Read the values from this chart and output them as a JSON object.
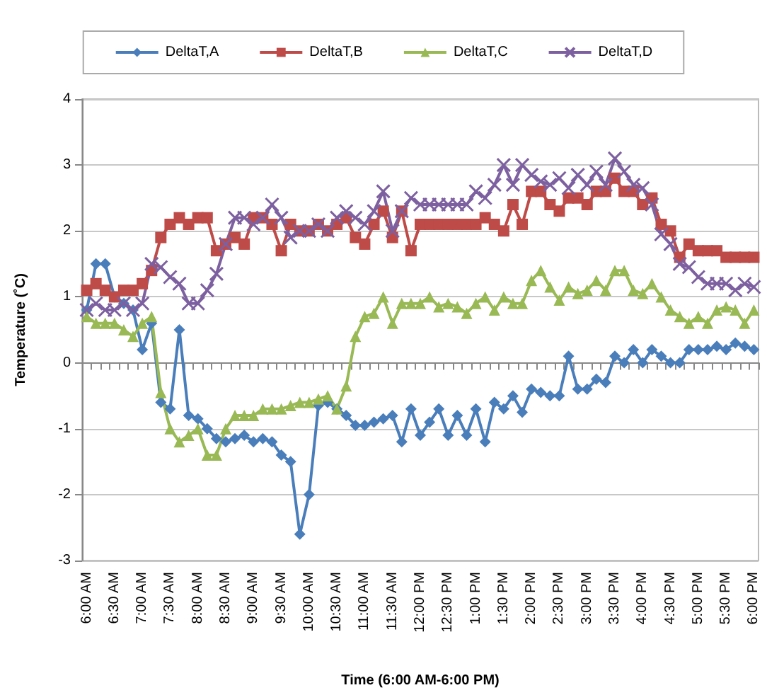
{
  "chart_data": {
    "type": "line",
    "xlabel": "Time (6:00 AM-6:00 PM)",
    "ylabel": "Temperature (˚C)",
    "categories": [
      "6:00 AM",
      null,
      null,
      "6:30 AM",
      null,
      null,
      "7:00 AM",
      null,
      null,
      "7:30 AM",
      null,
      null,
      "8:00 AM",
      null,
      null,
      "8:30 AM",
      null,
      null,
      "9:00 AM",
      null,
      null,
      "9:30 AM",
      null,
      null,
      "10:00 AM",
      null,
      null,
      "10:30 AM",
      null,
      null,
      "11:00 AM",
      null,
      null,
      "11:30 AM",
      null,
      null,
      "12:00 PM",
      null,
      null,
      "12:30 PM",
      null,
      null,
      "1:00 PM",
      null,
      null,
      "1:30 PM",
      null,
      null,
      "2:00 PM",
      null,
      null,
      "2:30 PM",
      null,
      null,
      "3:00 PM",
      null,
      null,
      "3:30 PM",
      null,
      null,
      "4:00 PM",
      null,
      null,
      "4:30 PM",
      null,
      null,
      "5:00 PM",
      null,
      null,
      "5:30 PM",
      null,
      null,
      "6:00 PM"
    ],
    "series": [
      {
        "name": "DeltaT,A",
        "color": "#4a7ebb",
        "marker": "diamond",
        "values": [
          0.8,
          1.5,
          1.5,
          1.0,
          0.9,
          0.8,
          0.2,
          0.6,
          -0.6,
          -0.7,
          0.5,
          -0.8,
          -0.85,
          -1.0,
          -1.15,
          -1.2,
          -1.15,
          -1.1,
          -1.2,
          -1.15,
          -1.2,
          -1.4,
          -1.5,
          -2.6,
          -2.0,
          -0.65,
          -0.6,
          -0.7,
          -0.8,
          -0.95,
          -0.95,
          -0.9,
          -0.85,
          -0.8,
          -1.2,
          -0.7,
          -1.1,
          -0.9,
          -0.7,
          -1.1,
          -0.8,
          -1.1,
          -0.7,
          -1.2,
          -0.6,
          -0.7,
          -0.5,
          -0.75,
          -0.4,
          -0.45,
          -0.5,
          -0.5,
          0.1,
          -0.4,
          -0.4,
          -0.25,
          -0.3,
          0.1,
          0.0,
          0.2,
          0.0,
          0.2,
          0.1,
          0.0,
          0.0,
          0.2,
          0.2,
          0.2,
          0.25,
          0.2,
          0.3,
          0.25,
          0.2
        ]
      },
      {
        "name": "DeltaT,B",
        "color": "#be4b48",
        "marker": "square",
        "values": [
          1.1,
          1.2,
          1.1,
          1.0,
          1.1,
          1.1,
          1.2,
          1.4,
          1.9,
          2.1,
          2.2,
          2.1,
          2.2,
          2.2,
          1.7,
          1.8,
          1.9,
          1.8,
          2.2,
          2.2,
          2.1,
          1.7,
          2.1,
          2.0,
          2.0,
          2.1,
          2.0,
          2.1,
          2.2,
          1.9,
          1.8,
          2.1,
          2.3,
          1.9,
          2.3,
          1.7,
          2.1,
          2.1,
          2.1,
          2.1,
          2.1,
          2.1,
          2.1,
          2.2,
          2.1,
          2.0,
          2.4,
          2.1,
          2.6,
          2.6,
          2.4,
          2.3,
          2.5,
          2.5,
          2.4,
          2.6,
          2.6,
          2.8,
          2.6,
          2.6,
          2.4,
          2.5,
          2.1,
          2.0,
          1.6,
          1.8,
          1.7,
          1.7,
          1.7,
          1.6,
          1.6,
          1.6,
          1.6
        ]
      },
      {
        "name": "DeltaT,C",
        "color": "#98b954",
        "marker": "triangle",
        "values": [
          0.7,
          0.6,
          0.6,
          0.6,
          0.5,
          0.4,
          0.6,
          0.7,
          -0.45,
          -1.0,
          -1.2,
          -1.1,
          -1.0,
          -1.4,
          -1.4,
          -1.0,
          -0.8,
          -0.8,
          -0.8,
          -0.7,
          -0.7,
          -0.7,
          -0.65,
          -0.6,
          -0.6,
          -0.55,
          -0.5,
          -0.7,
          -0.35,
          0.4,
          0.7,
          0.75,
          1.0,
          0.6,
          0.9,
          0.9,
          0.9,
          1.0,
          0.85,
          0.9,
          0.85,
          0.75,
          0.9,
          1.0,
          0.8,
          1.0,
          0.9,
          0.9,
          1.25,
          1.4,
          1.15,
          0.95,
          1.15,
          1.05,
          1.1,
          1.25,
          1.1,
          1.4,
          1.4,
          1.1,
          1.05,
          1.2,
          1.0,
          0.8,
          0.7,
          0.6,
          0.7,
          0.6,
          0.8,
          0.85,
          0.8,
          0.6,
          0.8
        ]
      },
      {
        "name": "DeltaT,D",
        "color": "#7d60a0",
        "marker": "cross",
        "values": [
          0.8,
          0.9,
          0.8,
          0.8,
          0.9,
          0.8,
          0.9,
          1.5,
          1.45,
          1.3,
          1.2,
          0.9,
          0.9,
          1.1,
          1.35,
          1.8,
          2.2,
          2.2,
          2.1,
          2.2,
          2.4,
          2.2,
          1.9,
          2.0,
          2.0,
          2.1,
          2.0,
          2.2,
          2.3,
          2.2,
          2.1,
          2.3,
          2.6,
          2.0,
          2.3,
          2.5,
          2.4,
          2.4,
          2.4,
          2.4,
          2.4,
          2.4,
          2.6,
          2.5,
          2.7,
          3.0,
          2.7,
          3.0,
          2.85,
          2.75,
          2.7,
          2.8,
          2.65,
          2.85,
          2.7,
          2.9,
          2.7,
          3.1,
          2.9,
          2.7,
          2.65,
          2.4,
          1.95,
          1.8,
          1.5,
          1.45,
          1.3,
          1.2,
          1.2,
          1.2,
          1.1,
          1.2,
          1.15
        ]
      }
    ],
    "ylim": [
      -3,
      4
    ],
    "yticks": [
      -3,
      -2,
      -1,
      0,
      1,
      2,
      3,
      4
    ],
    "grid": "y",
    "legend": "top"
  }
}
